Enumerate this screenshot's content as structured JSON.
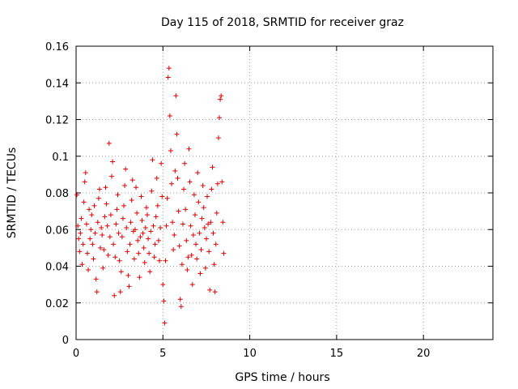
{
  "chart_data": {
    "type": "scatter",
    "title": "Day 115 of 2018, SRMTID for receiver graz",
    "xlabel": "GPS time / hours",
    "ylabel": "SRMTID / TECUs",
    "xlim": [
      0,
      24
    ],
    "ylim": [
      0,
      0.16
    ],
    "xticks": [
      0,
      5,
      10,
      15,
      20
    ],
    "yticks": [
      0,
      0.02,
      0.04,
      0.06,
      0.08,
      0.1,
      0.12,
      0.14,
      0.16
    ],
    "xtick_labels": [
      "0",
      "5",
      "10",
      "15",
      "20"
    ],
    "ytick_labels": [
      "0",
      "0.02",
      "0.04",
      "0.06",
      "0.08",
      "0.1",
      "0.12",
      "0.14",
      "0.16"
    ],
    "grid": true,
    "marker": "+",
    "color": "#e00000",
    "series": [
      {
        "points": [
          [
            0.05,
            0.079
          ],
          [
            0.1,
            0.062
          ],
          [
            0.15,
            0.055
          ],
          [
            0.2,
            0.048
          ],
          [
            0.25,
            0.058
          ],
          [
            0.3,
            0.066
          ],
          [
            0.35,
            0.041
          ],
          [
            0.4,
            0.052
          ],
          [
            0.45,
            0.075
          ],
          [
            0.5,
            0.086
          ],
          [
            0.55,
            0.091
          ],
          [
            0.6,
            0.063
          ],
          [
            0.65,
            0.047
          ],
          [
            0.7,
            0.038
          ],
          [
            0.75,
            0.071
          ],
          [
            0.8,
            0.055
          ],
          [
            0.85,
            0.06
          ],
          [
            0.9,
            0.068
          ],
          [
            0.95,
            0.052
          ],
          [
            1.0,
            0.044
          ],
          [
            1.05,
            0.073
          ],
          [
            1.1,
            0.058
          ],
          [
            1.15,
            0.033
          ],
          [
            1.2,
            0.026
          ],
          [
            1.25,
            0.064
          ],
          [
            1.3,
            0.077
          ],
          [
            1.35,
            0.082
          ],
          [
            1.4,
            0.05
          ],
          [
            1.45,
            0.061
          ],
          [
            1.5,
            0.057
          ],
          [
            1.55,
            0.039
          ],
          [
            1.6,
            0.049
          ],
          [
            1.65,
            0.067
          ],
          [
            1.7,
            0.083
          ],
          [
            1.75,
            0.074
          ],
          [
            1.8,
            0.062
          ],
          [
            1.85,
            0.046
          ],
          [
            1.9,
            0.107
          ],
          [
            1.95,
            0.056
          ],
          [
            2.0,
            0.068
          ],
          [
            2.05,
            0.089
          ],
          [
            2.1,
            0.097
          ],
          [
            2.15,
            0.052
          ],
          [
            2.2,
            0.024
          ],
          [
            2.25,
            0.045
          ],
          [
            2.3,
            0.063
          ],
          [
            2.35,
            0.071
          ],
          [
            2.4,
            0.079
          ],
          [
            2.45,
            0.058
          ],
          [
            2.5,
            0.043
          ],
          [
            2.55,
            0.026
          ],
          [
            2.6,
            0.037
          ],
          [
            2.65,
            0.056
          ],
          [
            2.7,
            0.066
          ],
          [
            2.75,
            0.073
          ],
          [
            2.8,
            0.084
          ],
          [
            2.85,
            0.093
          ],
          [
            2.9,
            0.061
          ],
          [
            2.95,
            0.048
          ],
          [
            3.0,
            0.035
          ],
          [
            3.05,
            0.029
          ],
          [
            3.1,
            0.052
          ],
          [
            3.15,
            0.064
          ],
          [
            3.2,
            0.076
          ],
          [
            3.25,
            0.087
          ],
          [
            3.3,
            0.059
          ],
          [
            3.35,
            0.044
          ],
          [
            3.4,
            0.06
          ],
          [
            3.45,
            0.083
          ],
          [
            3.5,
            0.069
          ],
          [
            3.55,
            0.054
          ],
          [
            3.6,
            0.047
          ],
          [
            3.65,
            0.034
          ],
          [
            3.7,
            0.056
          ],
          [
            3.75,
            0.078
          ],
          [
            3.8,
            0.065
          ],
          [
            3.85,
            0.058
          ],
          [
            3.9,
            0.05
          ],
          [
            3.95,
            0.042
          ],
          [
            4.0,
            0.061
          ],
          [
            4.05,
            0.072
          ],
          [
            4.1,
            0.068
          ],
          [
            4.15,
            0.055
          ],
          [
            4.2,
            0.047
          ],
          [
            4.25,
            0.037
          ],
          [
            4.3,
            0.059
          ],
          [
            4.35,
            0.081
          ],
          [
            4.4,
            0.098
          ],
          [
            4.45,
            0.062
          ],
          [
            4.5,
            0.045
          ],
          [
            4.55,
            0.052
          ],
          [
            4.6,
            0.067
          ],
          [
            4.65,
            0.088
          ],
          [
            4.7,
            0.073
          ],
          [
            4.75,
            0.054
          ],
          [
            4.8,
            0.043
          ],
          [
            4.85,
            0.061
          ],
          [
            4.9,
            0.096
          ],
          [
            4.95,
            0.078
          ],
          [
            5.0,
            0.03
          ],
          [
            5.05,
            0.021
          ],
          [
            5.1,
            0.009
          ],
          [
            5.15,
            0.043
          ],
          [
            5.2,
            0.062
          ],
          [
            5.25,
            0.077
          ],
          [
            5.3,
            0.143
          ],
          [
            5.35,
            0.148
          ],
          [
            5.4,
            0.122
          ],
          [
            5.45,
            0.103
          ],
          [
            5.5,
            0.085
          ],
          [
            5.55,
            0.064
          ],
          [
            5.6,
            0.049
          ],
          [
            5.65,
            0.057
          ],
          [
            5.7,
            0.092
          ],
          [
            5.75,
            0.133
          ],
          [
            5.8,
            0.112
          ],
          [
            5.85,
            0.088
          ],
          [
            5.9,
            0.07
          ],
          [
            5.95,
            0.051
          ],
          [
            6.0,
            0.022
          ],
          [
            6.05,
            0.018
          ],
          [
            6.1,
            0.041
          ],
          [
            6.15,
            0.063
          ],
          [
            6.2,
            0.082
          ],
          [
            6.25,
            0.096
          ],
          [
            6.3,
            0.071
          ],
          [
            6.35,
            0.054
          ],
          [
            6.4,
            0.038
          ],
          [
            6.45,
            0.045
          ],
          [
            6.5,
            0.104
          ],
          [
            6.55,
            0.086
          ],
          [
            6.6,
            0.062
          ],
          [
            6.65,
            0.046
          ],
          [
            6.7,
            0.03
          ],
          [
            6.75,
            0.057
          ],
          [
            6.8,
            0.079
          ],
          [
            6.85,
            0.068
          ],
          [
            6.9,
            0.052
          ],
          [
            6.95,
            0.044
          ],
          [
            7.0,
            0.091
          ],
          [
            7.05,
            0.075
          ],
          [
            7.1,
            0.058
          ],
          [
            7.15,
            0.036
          ],
          [
            7.2,
            0.049
          ],
          [
            7.25,
            0.066
          ],
          [
            7.3,
            0.084
          ],
          [
            7.35,
            0.072
          ],
          [
            7.4,
            0.061
          ],
          [
            7.45,
            0.039
          ],
          [
            7.5,
            0.055
          ],
          [
            7.55,
            0.078
          ],
          [
            7.6,
            0.063
          ],
          [
            7.65,
            0.048
          ],
          [
            7.7,
            0.027
          ],
          [
            7.75,
            0.064
          ],
          [
            7.8,
            0.082
          ],
          [
            7.85,
            0.094
          ],
          [
            7.9,
            0.058
          ],
          [
            7.95,
            0.041
          ],
          [
            8.0,
            0.026
          ],
          [
            8.05,
            0.052
          ],
          [
            8.1,
            0.069
          ],
          [
            8.15,
            0.085
          ],
          [
            8.2,
            0.11
          ],
          [
            8.25,
            0.121
          ],
          [
            8.3,
            0.131
          ],
          [
            8.35,
            0.133
          ],
          [
            8.4,
            0.086
          ],
          [
            8.45,
            0.064
          ],
          [
            8.5,
            0.047
          ]
        ]
      }
    ]
  }
}
